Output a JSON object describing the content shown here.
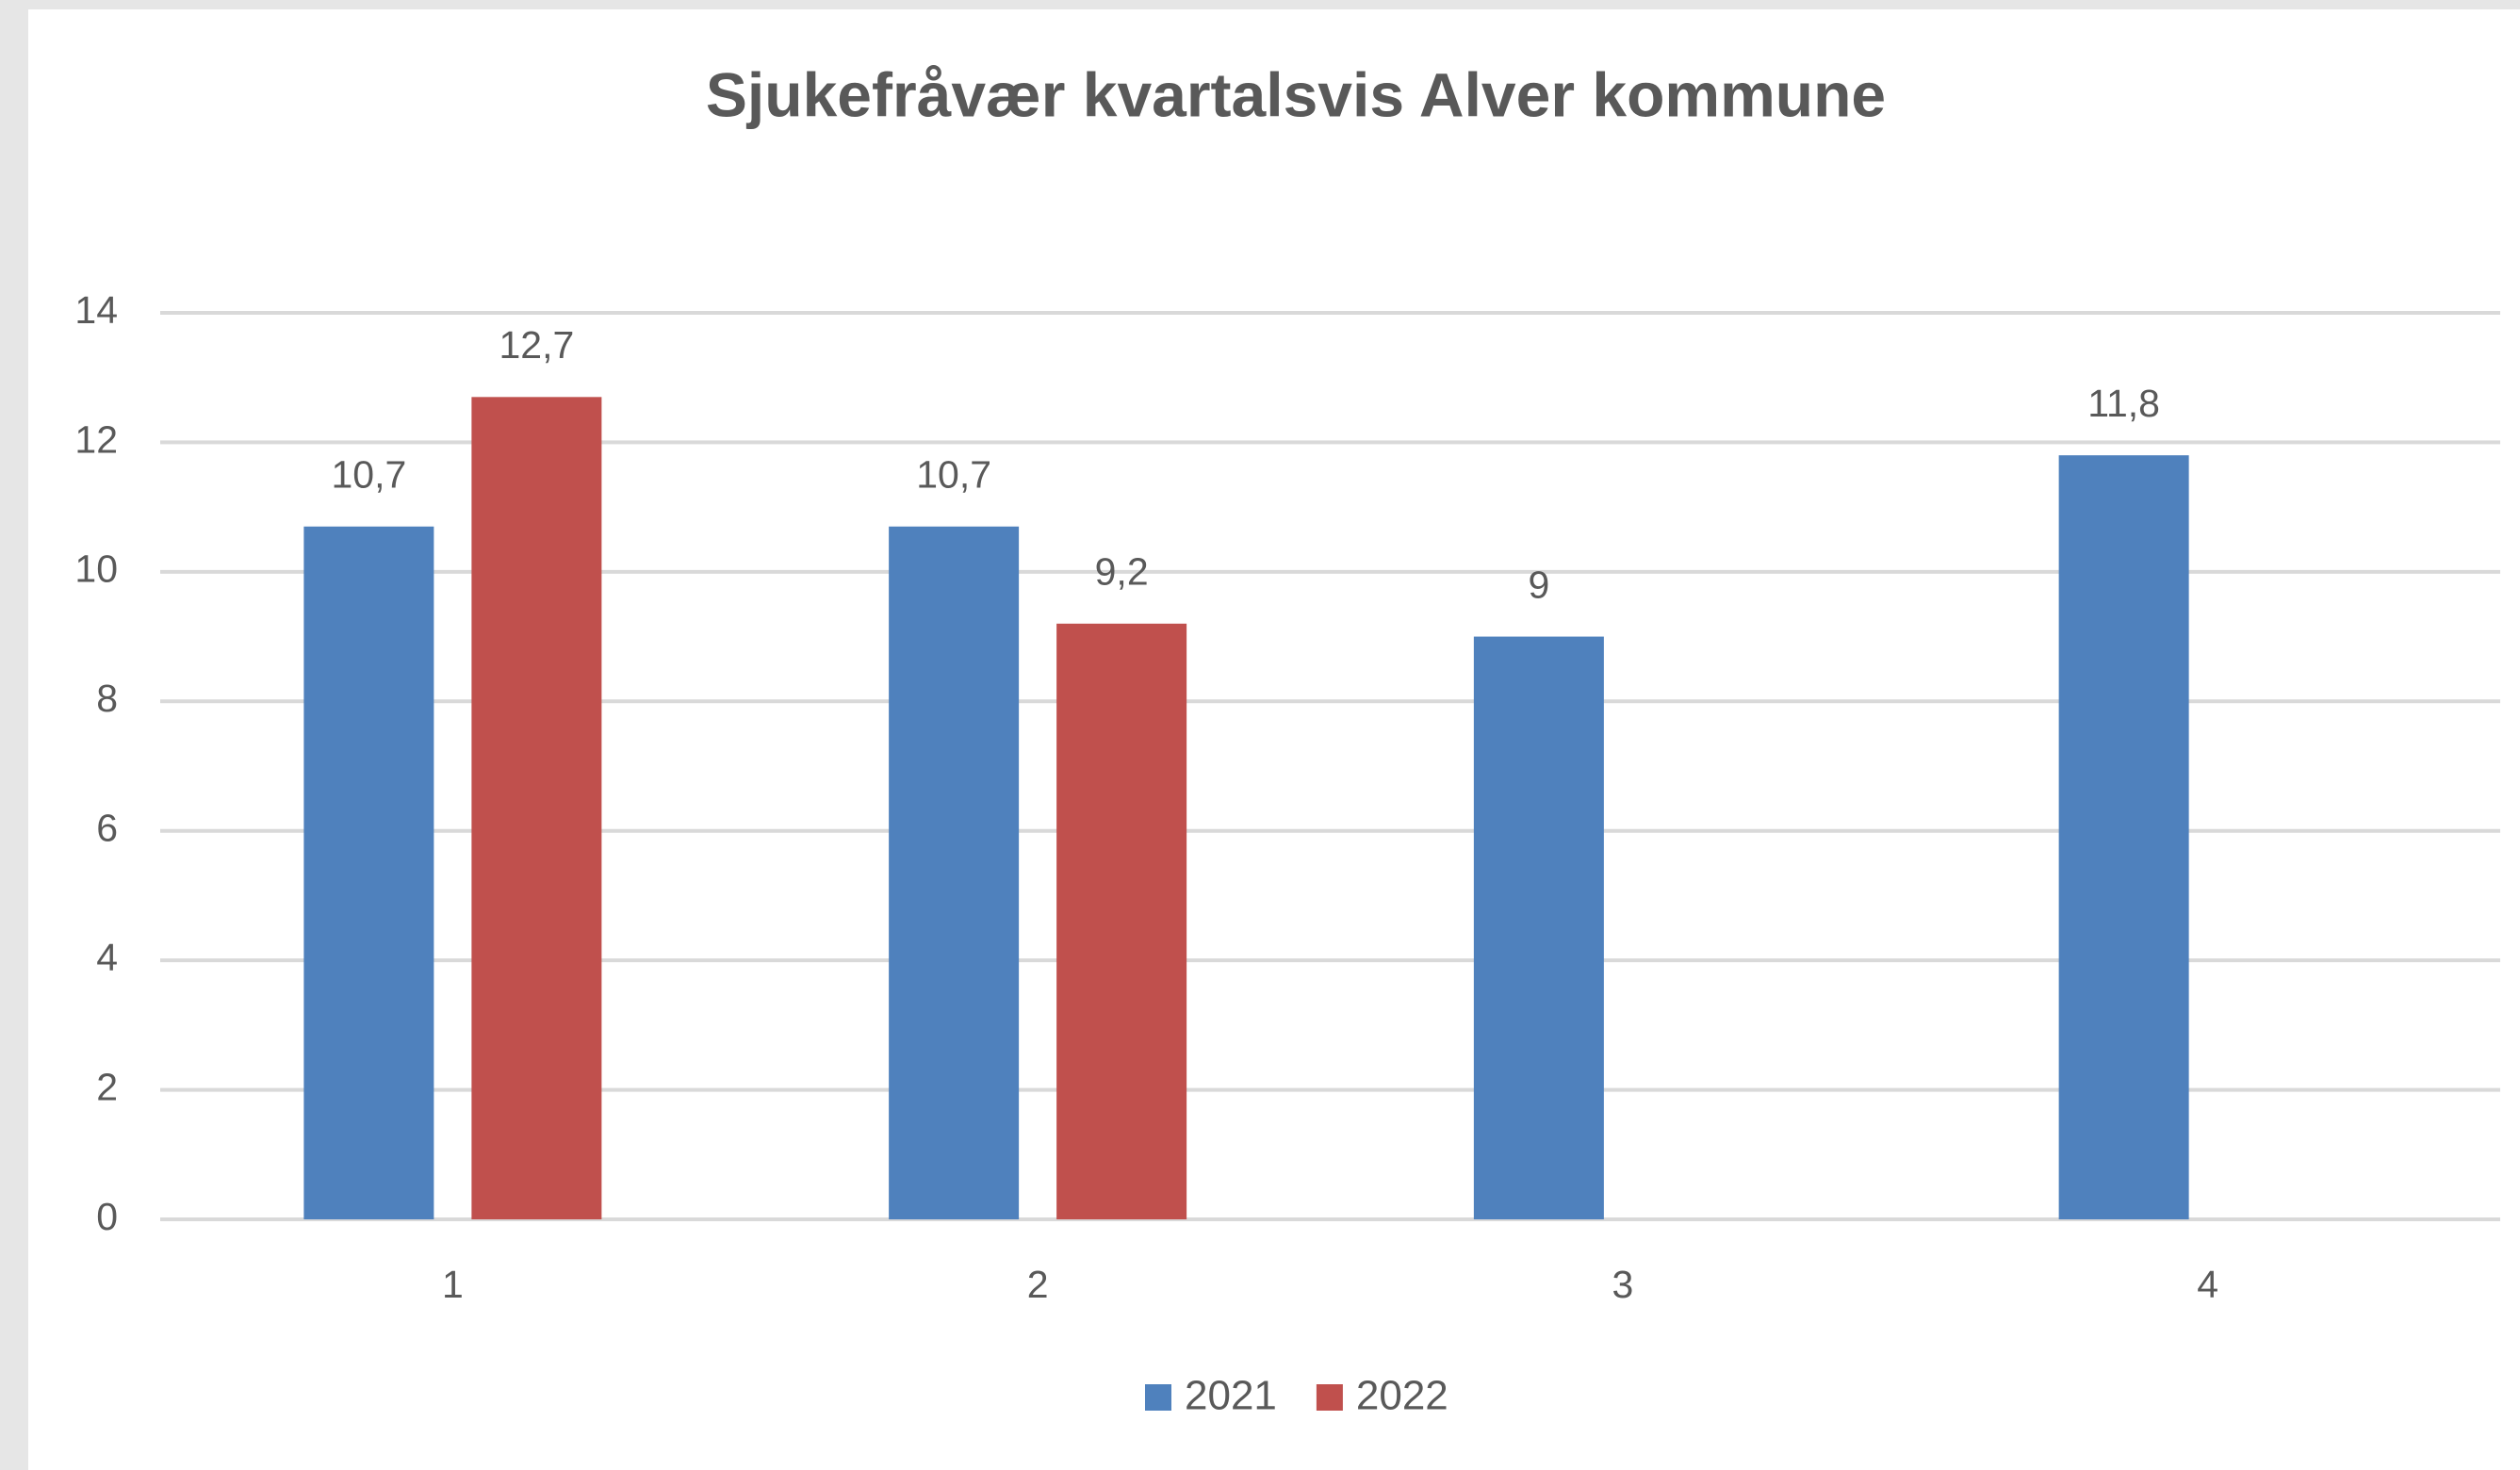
{
  "chart_data": {
    "type": "bar",
    "title": "Sjukefråvær kvartalsvis Alver kommune",
    "categories": [
      "1",
      "2",
      "3",
      "4"
    ],
    "series": [
      {
        "name": "2021",
        "color": "#4f81bd",
        "values": [
          10.7,
          10.7,
          9,
          11.8
        ],
        "value_labels": [
          "10,7",
          "10,7",
          "9",
          "11,8"
        ]
      },
      {
        "name": "2022",
        "color": "#c0504d",
        "values": [
          12.7,
          9.2,
          null,
          null
        ],
        "value_labels": [
          "12,7",
          "9,2",
          null,
          null
        ]
      }
    ],
    "ylim": [
      0,
      14
    ],
    "yticks": [
      0,
      2,
      4,
      6,
      8,
      10,
      12,
      14
    ],
    "grid": true,
    "legend": "bottom"
  }
}
